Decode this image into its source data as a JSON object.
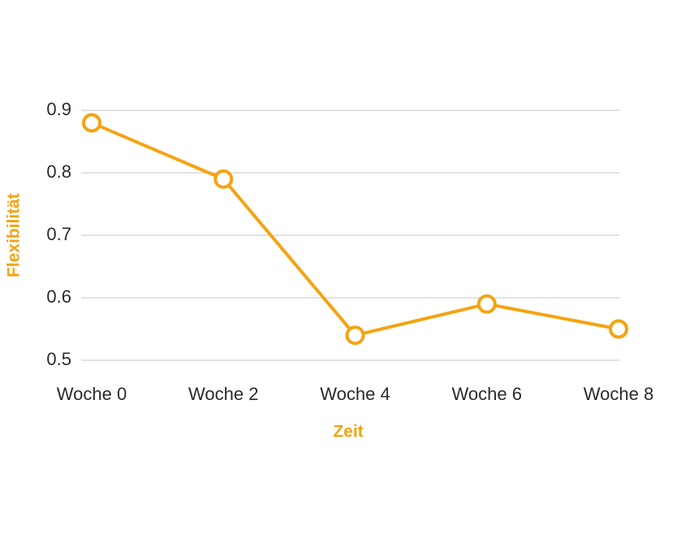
{
  "chart_data": {
    "type": "line",
    "x_label": "Zeit",
    "y_label": "Flexibilität",
    "categories": [
      "Woche 0",
      "Woche 2",
      "Woche 4",
      "Woche 6",
      "Woche 8"
    ],
    "series": [
      {
        "name": "Flexibilität",
        "color": "#f5a312",
        "values": [
          0.88,
          0.79,
          0.54,
          0.59,
          0.55
        ]
      }
    ],
    "ylim": [
      0.5,
      0.9
    ],
    "yticks": [
      0.5,
      0.6,
      0.7,
      0.8,
      0.9
    ],
    "grid": true
  }
}
